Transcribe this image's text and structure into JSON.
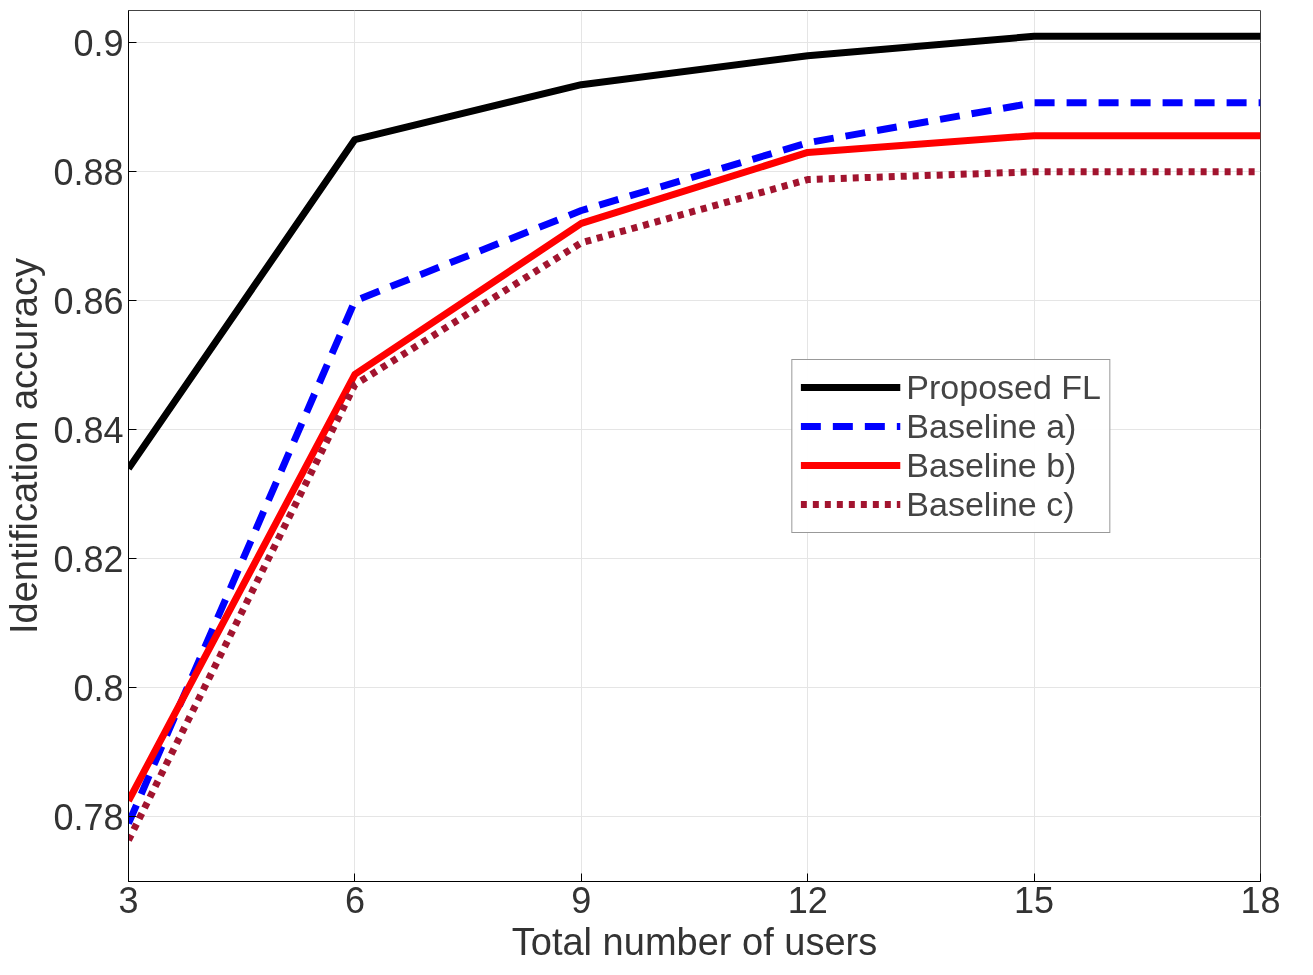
{
  "chart_data": {
    "type": "line",
    "xlabel": "Total number of users",
    "ylabel": "Identification accuracy",
    "x": [
      3,
      6,
      9,
      12,
      15,
      18
    ],
    "series": [
      {
        "name": "Proposed FL",
        "color": "#000000",
        "line_style": "solid",
        "values": [
          0.834,
          0.885,
          0.8935,
          0.898,
          0.901,
          0.901
        ]
      },
      {
        "name": "Baseline a)",
        "color": "#0000ff",
        "line_style": "dashed",
        "values": [
          0.779,
          0.86,
          0.874,
          0.8845,
          0.8907,
          0.8907
        ]
      },
      {
        "name": "Baseline b)",
        "color": "#ff0000",
        "line_style": "solid",
        "values": [
          0.7825,
          0.8486,
          0.872,
          0.883,
          0.8856,
          0.8856
        ]
      },
      {
        "name": "Baseline c)",
        "color": "#a2142f",
        "line_style": "dotted",
        "values": [
          0.7764,
          0.847,
          0.869,
          0.8788,
          0.88,
          0.88
        ]
      }
    ],
    "xlim": [
      3,
      18
    ],
    "xticks": [
      3,
      6,
      9,
      12,
      15,
      18
    ],
    "ylim": [
      0.77,
      0.905
    ],
    "yticks": [
      0.78,
      0.8,
      0.82,
      0.84,
      0.86,
      0.88,
      0.9
    ],
    "grid": true,
    "legend": "right"
  }
}
